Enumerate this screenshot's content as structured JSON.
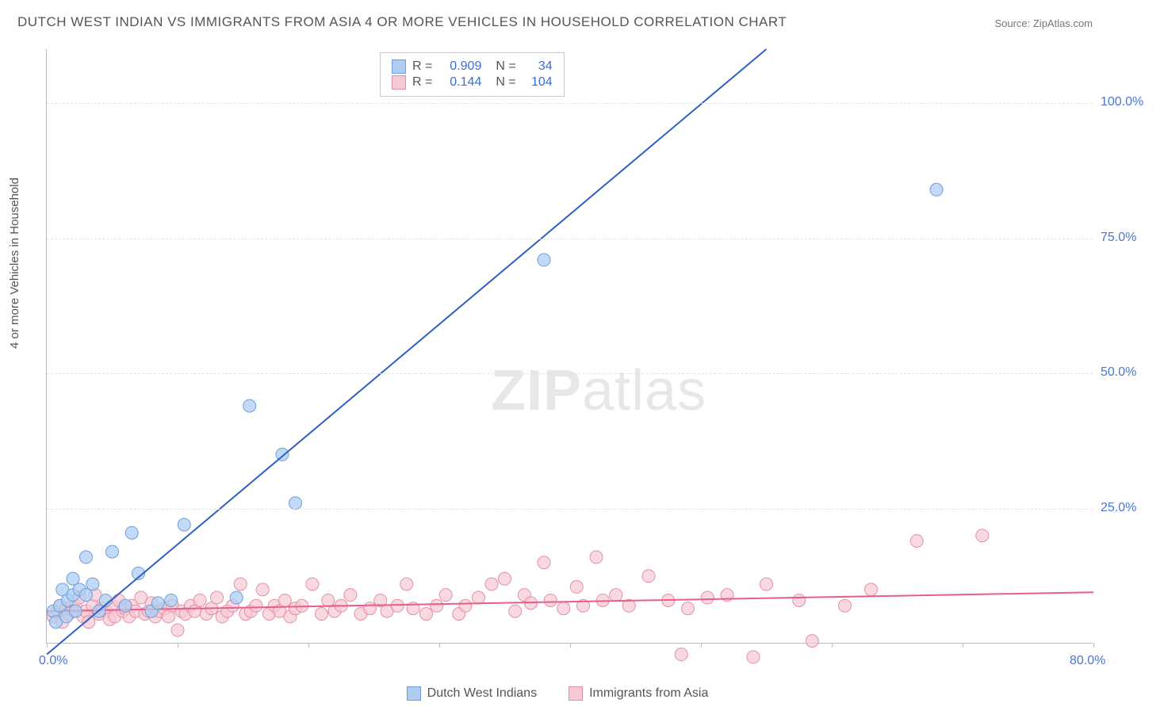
{
  "title": "DUTCH WEST INDIAN VS IMMIGRANTS FROM ASIA 4 OR MORE VEHICLES IN HOUSEHOLD CORRELATION CHART",
  "source": "Source: ZipAtlas.com",
  "ylabel": "4 or more Vehicles in Household",
  "watermark_a": "ZIP",
  "watermark_b": "atlas",
  "chart": {
    "type": "scatter",
    "xlim": [
      0,
      80
    ],
    "ylim": [
      0,
      110
    ],
    "xticks": [
      0,
      10,
      20,
      30,
      40,
      50,
      60,
      70,
      80
    ],
    "xtick_label_first": "0.0%",
    "xtick_label_last": "80.0%",
    "yticks": [
      25,
      50,
      75,
      100
    ],
    "ytick_labels": [
      "25.0%",
      "50.0%",
      "75.0%",
      "100.0%"
    ],
    "grid_color": "#e3e3e3",
    "axis_color": "#4a76d4",
    "series": [
      {
        "name": "Dutch West Indians",
        "color_fill": "#aecdf2",
        "color_stroke": "#6f9edb",
        "R": "0.909",
        "N": "34",
        "marker_radius": 8,
        "trend": {
          "x1": 0,
          "y1": -2,
          "x2": 55,
          "y2": 110,
          "stroke": "#2d5fc4",
          "width": 2
        },
        "points": [
          [
            0.5,
            6
          ],
          [
            0.7,
            4
          ],
          [
            1,
            7
          ],
          [
            1.2,
            10
          ],
          [
            1.5,
            5
          ],
          [
            1.6,
            8
          ],
          [
            2,
            9
          ],
          [
            2,
            12
          ],
          [
            2.2,
            6
          ],
          [
            2.5,
            10
          ],
          [
            3,
            9
          ],
          [
            3,
            16
          ],
          [
            3.5,
            11
          ],
          [
            4,
            6
          ],
          [
            4.5,
            8
          ],
          [
            5,
            17
          ],
          [
            6,
            7
          ],
          [
            6.5,
            20.5
          ],
          [
            7,
            13
          ],
          [
            8,
            6
          ],
          [
            8.5,
            7.5
          ],
          [
            9.5,
            8
          ],
          [
            10.5,
            22
          ],
          [
            14.5,
            8.5
          ],
          [
            15.5,
            44
          ],
          [
            18,
            35
          ],
          [
            19,
            26
          ],
          [
            38,
            71
          ],
          [
            68,
            84
          ]
        ]
      },
      {
        "name": "Immigrants from Asia",
        "color_fill": "#f7c9d4",
        "color_stroke": "#e58fa5",
        "R": "0.144",
        "N": "104",
        "marker_radius": 8,
        "trend": {
          "x1": 0,
          "y1": 6,
          "x2": 80,
          "y2": 9.5,
          "stroke": "#e75f86",
          "width": 2
        },
        "points": [
          [
            0.5,
            5
          ],
          [
            0.8,
            6
          ],
          [
            1,
            7
          ],
          [
            1.2,
            4
          ],
          [
            1.5,
            6.5
          ],
          [
            1.7,
            5.5
          ],
          [
            2,
            6
          ],
          [
            2.2,
            7
          ],
          [
            2.5,
            8.5
          ],
          [
            2.8,
            5
          ],
          [
            3,
            6
          ],
          [
            3.2,
            4
          ],
          [
            3.5,
            7
          ],
          [
            3.7,
            9
          ],
          [
            4,
            5.5
          ],
          [
            4.2,
            6.5
          ],
          [
            4.5,
            6
          ],
          [
            4.8,
            4.5
          ],
          [
            5,
            7
          ],
          [
            5.2,
            5
          ],
          [
            5.5,
            8
          ],
          [
            5.8,
            6
          ],
          [
            6,
            6.5
          ],
          [
            6.3,
            5
          ],
          [
            6.5,
            7
          ],
          [
            6.8,
            6
          ],
          [
            7.2,
            8.5
          ],
          [
            7.5,
            5.5
          ],
          [
            7.8,
            6
          ],
          [
            8,
            7.5
          ],
          [
            8.3,
            5
          ],
          [
            8.6,
            6
          ],
          [
            9,
            6.5
          ],
          [
            9.3,
            5
          ],
          [
            9.6,
            7
          ],
          [
            10,
            2.5
          ],
          [
            10.3,
            6
          ],
          [
            10.6,
            5.5
          ],
          [
            11,
            7
          ],
          [
            11.3,
            6
          ],
          [
            11.7,
            8
          ],
          [
            12.2,
            5.5
          ],
          [
            12.6,
            6.5
          ],
          [
            13,
            8.5
          ],
          [
            13.4,
            5
          ],
          [
            13.8,
            6
          ],
          [
            14.2,
            7
          ],
          [
            14.8,
            11
          ],
          [
            15.2,
            5.5
          ],
          [
            15.6,
            6
          ],
          [
            16,
            7
          ],
          [
            16.5,
            10
          ],
          [
            17,
            5.5
          ],
          [
            17.4,
            7
          ],
          [
            17.8,
            6
          ],
          [
            18.2,
            8
          ],
          [
            18.6,
            5
          ],
          [
            19,
            6.5
          ],
          [
            19.5,
            7
          ],
          [
            20.3,
            11
          ],
          [
            21,
            5.5
          ],
          [
            21.5,
            8
          ],
          [
            22,
            6
          ],
          [
            22.5,
            7
          ],
          [
            23.2,
            9
          ],
          [
            24,
            5.5
          ],
          [
            24.7,
            6.5
          ],
          [
            25.5,
            8
          ],
          [
            26,
            6
          ],
          [
            26.8,
            7
          ],
          [
            27.5,
            11
          ],
          [
            28,
            6.5
          ],
          [
            29,
            5.5
          ],
          [
            29.8,
            7
          ],
          [
            30.5,
            9
          ],
          [
            31.5,
            5.5
          ],
          [
            32,
            7
          ],
          [
            33,
            8.5
          ],
          [
            34,
            11
          ],
          [
            35,
            12
          ],
          [
            35.8,
            6
          ],
          [
            36.5,
            9
          ],
          [
            37,
            7.5
          ],
          [
            38,
            15
          ],
          [
            38.5,
            8
          ],
          [
            39.5,
            6.5
          ],
          [
            40.5,
            10.5
          ],
          [
            41,
            7
          ],
          [
            42,
            16
          ],
          [
            42.5,
            8
          ],
          [
            43.5,
            9
          ],
          [
            44.5,
            7
          ],
          [
            46,
            12.5
          ],
          [
            47.5,
            8
          ],
          [
            48.5,
            -2
          ],
          [
            49,
            6.5
          ],
          [
            50.5,
            8.5
          ],
          [
            52,
            9
          ],
          [
            54,
            -2.5
          ],
          [
            55,
            11
          ],
          [
            57.5,
            8
          ],
          [
            58.5,
            0.5
          ],
          [
            61,
            7
          ],
          [
            63,
            10
          ],
          [
            66.5,
            19
          ],
          [
            71.5,
            20
          ]
        ]
      }
    ]
  },
  "legend": {
    "items": [
      {
        "label": "Dutch West Indians",
        "fill": "#aecdf2",
        "stroke": "#6f9edb"
      },
      {
        "label": "Immigrants from Asia",
        "fill": "#f7c9d4",
        "stroke": "#e58fa5"
      }
    ]
  }
}
